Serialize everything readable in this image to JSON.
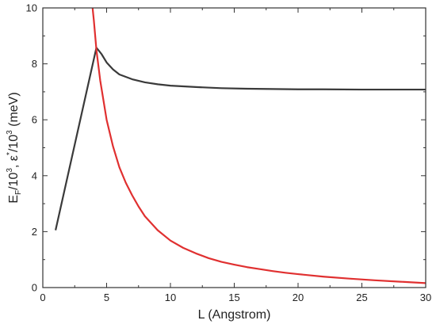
{
  "chart_data": {
    "type": "line",
    "xlabel": "L  (Angstrom)",
    "ylabel": {
      "p1": "E",
      "p1_sub": "F",
      "p2": "/10",
      "p2_sup": "3",
      "p3": ", ε",
      "p3_sup": "*",
      "p4": "/10",
      "p4_sup": "3",
      "p5": " (meV)"
    },
    "xlim": [
      0,
      30
    ],
    "ylim": [
      0,
      10
    ],
    "xticks": [
      0,
      5,
      10,
      15,
      20,
      25,
      30
    ],
    "yticks": [
      0,
      2,
      4,
      6,
      8,
      10
    ],
    "grid": false,
    "series": [
      {
        "color": "#3a3a3a",
        "points": [
          [
            1.0,
            2.05
          ],
          [
            4.2,
            8.58
          ],
          [
            4.6,
            8.35
          ],
          [
            5.0,
            8.05
          ],
          [
            5.5,
            7.8
          ],
          [
            6.0,
            7.62
          ],
          [
            7.0,
            7.45
          ],
          [
            8.0,
            7.34
          ],
          [
            9.0,
            7.27
          ],
          [
            10.0,
            7.22
          ],
          [
            12.0,
            7.17
          ],
          [
            14.0,
            7.13
          ],
          [
            16.0,
            7.11
          ],
          [
            18.0,
            7.1
          ],
          [
            20.0,
            7.09
          ],
          [
            22.0,
            7.09
          ],
          [
            25.0,
            7.08
          ],
          [
            28.0,
            7.08
          ],
          [
            30.0,
            7.08
          ]
        ]
      },
      {
        "color": "#e03030",
        "points": [
          [
            3.9,
            10.0
          ],
          [
            4.0,
            9.55
          ],
          [
            4.2,
            8.5
          ],
          [
            4.5,
            7.4
          ],
          [
            5.0,
            6.0
          ],
          [
            5.5,
            5.05
          ],
          [
            6.0,
            4.3
          ],
          [
            6.5,
            3.75
          ],
          [
            7.0,
            3.3
          ],
          [
            7.5,
            2.9
          ],
          [
            8.0,
            2.55
          ],
          [
            9.0,
            2.05
          ],
          [
            10.0,
            1.68
          ],
          [
            11.0,
            1.42
          ],
          [
            12.0,
            1.22
          ],
          [
            13.0,
            1.05
          ],
          [
            14.0,
            0.92
          ],
          [
            15.0,
            0.82
          ],
          [
            16.0,
            0.73
          ],
          [
            17.0,
            0.66
          ],
          [
            18.0,
            0.59
          ],
          [
            19.0,
            0.53
          ],
          [
            20.0,
            0.48
          ],
          [
            22.0,
            0.39
          ],
          [
            24.0,
            0.32
          ],
          [
            26.0,
            0.26
          ],
          [
            28.0,
            0.21
          ],
          [
            30.0,
            0.16
          ]
        ]
      }
    ]
  }
}
